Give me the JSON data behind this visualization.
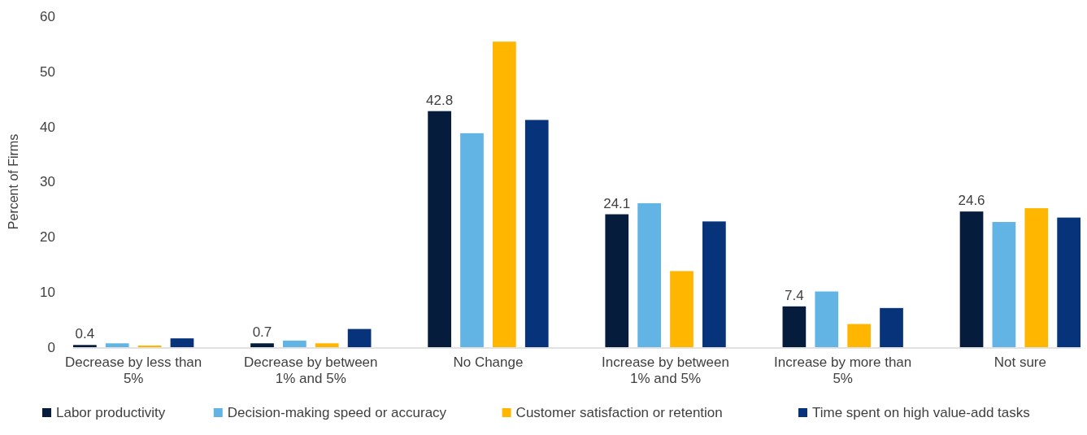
{
  "chart_data": {
    "type": "bar",
    "ylabel": "Percent of Firms",
    "categories": [
      "Decrease by less than 5%",
      "Decrease by between 1% and 5%",
      "No Change",
      "Increase by between 1% and 5%",
      "Increase by more than 5%",
      "Not sure"
    ],
    "series": [
      {
        "name": "Labor productivity",
        "color": "#061c3d",
        "values": [
          0.4,
          0.7,
          42.8,
          24.1,
          7.4,
          24.6
        ],
        "value_labels": [
          "0.4",
          "0.7",
          "42.8",
          "24.1",
          "7.4",
          "24.6"
        ]
      },
      {
        "name": "Decision-making speed or accuracy",
        "color": "#62b4e4",
        "values": [
          0.7,
          1.2,
          38.8,
          26.1,
          10.1,
          22.7
        ]
      },
      {
        "name": "Customer satisfaction or retention",
        "color": "#ffb600",
        "values": [
          0.3,
          0.7,
          55.4,
          13.8,
          4.2,
          25.2
        ]
      },
      {
        "name": "Time spent on high value-add tasks",
        "color": "#06337a",
        "values": [
          1.6,
          3.3,
          41.2,
          22.8,
          7.1,
          23.5
        ]
      }
    ],
    "ylim": [
      0,
      60
    ],
    "yticks": [
      0,
      10,
      20,
      30,
      40,
      50,
      60
    ],
    "grid": false,
    "legend": "bottom"
  }
}
